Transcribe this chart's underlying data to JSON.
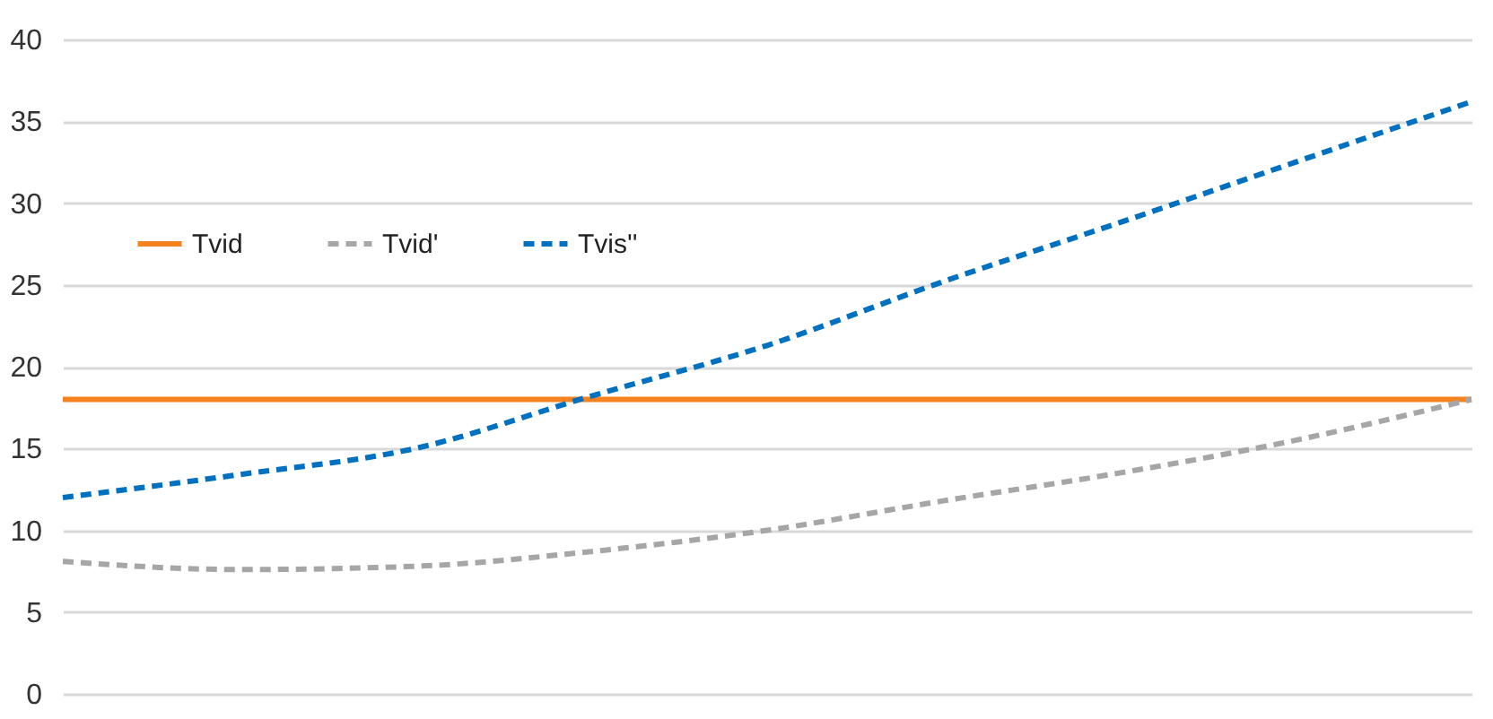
{
  "chart_data": {
    "type": "line",
    "categories": [
      null,
      null,
      null,
      null,
      null,
      null,
      null,
      null,
      null
    ],
    "series": [
      {
        "name": "Tvid",
        "color": "#f5821f",
        "line_style": "solid",
        "values": [
          18,
          18,
          18,
          18,
          18,
          18,
          18,
          18,
          18
        ]
      },
      {
        "name": "Tvid'",
        "color": "#a6a6a6",
        "line_style": "dashed",
        "values": [
          8.1,
          7.6,
          7.8,
          8.7,
          10.0,
          11.8,
          13.5,
          15.5,
          18.0
        ]
      },
      {
        "name": "Tvis''",
        "color": "#0070c0",
        "line_style": "dashed",
        "values": [
          12.0,
          13.4,
          15.0,
          18.2,
          21.3,
          25.2,
          28.8,
          32.5,
          36.2
        ]
      }
    ],
    "ylim": [
      0,
      40
    ],
    "yticks": [
      0,
      5,
      10,
      15,
      20,
      25,
      30,
      35,
      40
    ],
    "grid": "y",
    "legend": "top left",
    "marker": "none",
    "tick_labels": "y"
  }
}
